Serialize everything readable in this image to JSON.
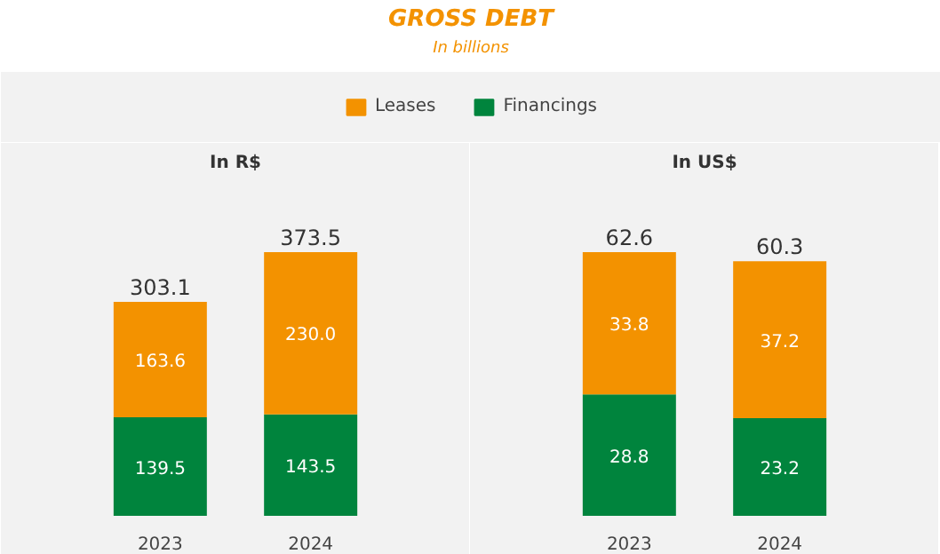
{
  "chart_data": [
    {
      "type": "bar",
      "title": "GROSS DEBT",
      "subtitle": "In billions",
      "xlabel": "In R$",
      "categories": [
        "2023",
        "2024"
      ],
      "stacked": true,
      "legend": "top",
      "totals": [
        "303.1",
        "373.5"
      ],
      "series": [
        {
          "name": "Financings",
          "color": "#00843d",
          "values": [
            139.5,
            143.5
          ],
          "value_labels": [
            "139.5",
            "143.5"
          ]
        },
        {
          "name": "Leases",
          "color": "#f39200",
          "values": [
            163.6,
            230.0
          ],
          "value_labels": [
            "163.6",
            "230.0"
          ]
        }
      ]
    },
    {
      "type": "bar",
      "xlabel": "In US$",
      "categories": [
        "2023",
        "2024"
      ],
      "stacked": true,
      "totals": [
        "62.6",
        "60.3"
      ],
      "series": [
        {
          "color": "#00843d",
          "values": [
            28.8,
            23.2
          ],
          "value_labels": [
            "28.8",
            "23.2"
          ]
        },
        {
          "color": "#f39200",
          "values": [
            33.8,
            37.2
          ],
          "value_labels": [
            "33.8",
            "37.2"
          ]
        }
      ]
    }
  ]
}
